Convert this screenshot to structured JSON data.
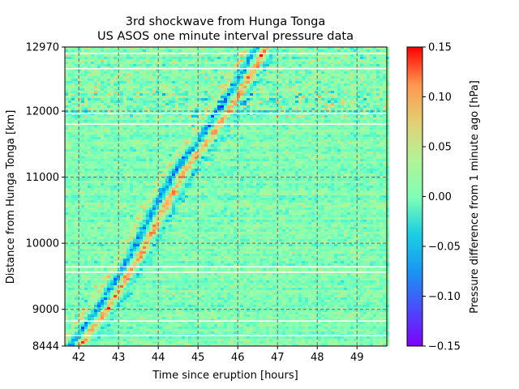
{
  "chart_data": {
    "type": "heatmap",
    "title_line1": "3rd shockwave from Hunga Tonga",
    "title_line2": "US ASOS one minute interval pressure data",
    "xlabel": "Time since eruption [hours]",
    "ylabel": "Distance from Hunga Tonga [km]",
    "colorbar_label": "Pressure difference from 1 minute ago [hPa]",
    "xlim": [
      41.65,
      49.75
    ],
    "ylim": [
      8444,
      12970
    ],
    "x_ticks": [
      42,
      43,
      44,
      45,
      46,
      47,
      48,
      49
    ],
    "y_ticks": [
      8444,
      9000,
      10000,
      11000,
      12000,
      12970
    ],
    "x_gridlines": [
      42,
      43,
      44,
      45,
      46,
      47,
      48,
      49
    ],
    "y_gridlines": [
      9000,
      10000,
      11000,
      12000
    ],
    "grid": true,
    "colormap": "rainbow",
    "clim": [
      -0.15,
      0.15
    ],
    "colorbar_ticks": [
      "0.15",
      "0.10",
      "0.05",
      "0.00",
      "−0.05",
      "−0.10",
      "−0.15"
    ],
    "wavefront": {
      "points": [
        [
          41.9,
          8444
        ],
        [
          42.6,
          9000
        ],
        [
          43.4,
          9800
        ],
        [
          44.0,
          10500
        ],
        [
          44.6,
          11150
        ],
        [
          45.2,
          11600
        ],
        [
          45.9,
          12250
        ],
        [
          46.6,
          12970
        ]
      ],
      "band_width_hours": 0.35
    },
    "noisy_station_band_km": [
      11900,
      12300
    ]
  }
}
